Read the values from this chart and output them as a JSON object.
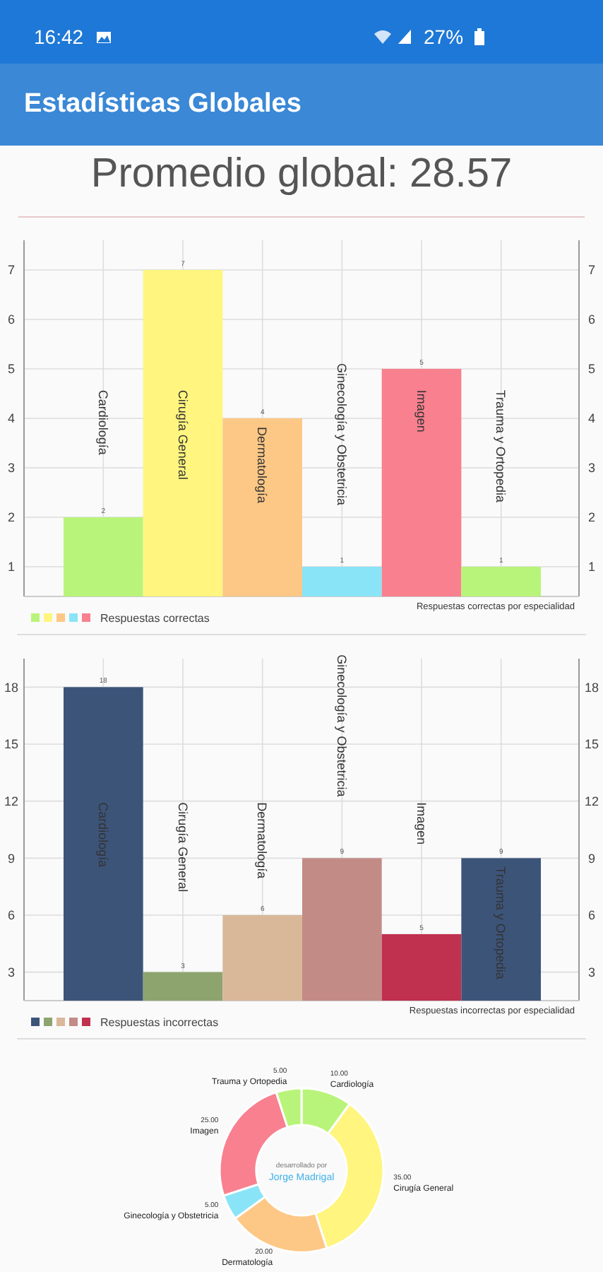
{
  "chart_data": [
    {
      "type": "bar",
      "title": "Estadísticas Globales",
      "subtitle": "Promedio global: 28.57",
      "annotations": [
        "Respuestas correctas por especialidad",
        "16:42",
        "27%"
      ],
      "categories": [
        "Cardiología",
        "Cirugía General",
        "Dermatología",
        "Ginecología y Obstetricia",
        "Imagen",
        "Trauma y Ortopedia"
      ],
      "series": [
        {
          "name": "Respuestas correctas",
          "colors": [
            "#b9f47a",
            "#fff57f",
            "#fdc886",
            "#8ae4f7",
            "#f8808f",
            "#b9f47a"
          ],
          "values": [
            2,
            7,
            4,
            1,
            5,
            1
          ]
        }
      ],
      "ylim": [
        0.4,
        7.6
      ],
      "yticks": [
        1,
        2,
        3,
        4,
        5,
        6,
        7
      ],
      "y2lim": [
        0.4,
        7.6
      ],
      "y2ticks": [
        1,
        2,
        3,
        4,
        5,
        6,
        7
      ],
      "grid": true,
      "legend": "bottom left",
      "data_labels": true
    },
    {
      "type": "bar",
      "annotations": [
        "Respuestas incorrectas por especialidad"
      ],
      "categories": [
        "Cardiología",
        "Cirugía General",
        "Dermatología",
        "Ginecología y Obstetricia",
        "Imagen",
        "Trauma y Ortopedia"
      ],
      "series": [
        {
          "name": "Respuestas incorrectas",
          "colors": [
            "#3d5479",
            "#8ea46e",
            "#d9b89a",
            "#c38b86",
            "#c0304f",
            "#3d5479"
          ],
          "values": [
            18,
            3,
            6,
            9,
            5,
            9
          ]
        }
      ],
      "ylim": [
        1.5,
        19.5
      ],
      "yticks": [
        3,
        6,
        9,
        12,
        15,
        18
      ],
      "y2lim": [
        1.5,
        19.5
      ],
      "y2ticks": [
        3,
        6,
        9,
        12,
        15,
        18
      ],
      "grid": true,
      "legend": "bottom left",
      "data_labels": true
    },
    {
      "type": "donut",
      "annotations": [
        "desarrollado por",
        "Jorge Madrigal"
      ],
      "categories": [
        "Cardiología",
        "Cirugía General",
        "Dermatología",
        "Ginecología y Obstetricia",
        "Imagen",
        "Trauma y Ortopedia"
      ],
      "values": [
        10,
        35,
        20,
        5,
        25,
        5
      ],
      "colors": [
        "#b9f47a",
        "#fff57f",
        "#fdc886",
        "#8ae4f7",
        "#f8808f",
        "#b9f47a"
      ],
      "value_labels": [
        "10.00",
        "35.00",
        "20.00",
        "5.00",
        "25.00",
        "5.00"
      ]
    }
  ]
}
